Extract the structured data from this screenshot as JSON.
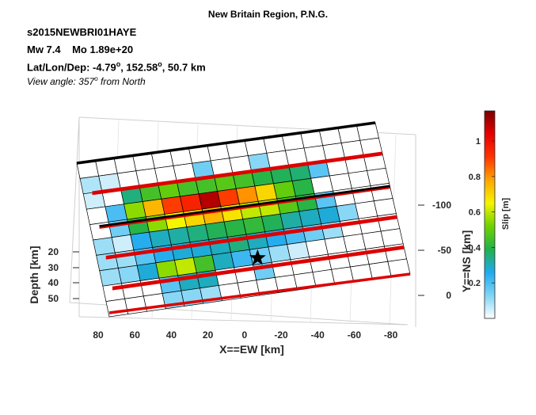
{
  "header": {
    "title": "New Britain Region, P.N.G.",
    "event_id": "s2015NEWBRI01HAYE",
    "magnitude": "Mw 7.4",
    "moment": "Mo 1.89e+20",
    "location_prefix": "Lat/Lon/Dep: -4.79",
    "location_lat": "-4.79",
    "location_lon": "152.58",
    "location_dep": "50.7 km",
    "view_prefix": "View angle: 357",
    "view_suffix": "from North",
    "degree_symbol": "o"
  },
  "chart_data": {
    "type": "heatmap",
    "title": "New Britain Region, P.N.G.",
    "xlabel": "X==EW [km]",
    "ylabel": "Y==NS [km]",
    "zlabel": "Depth [km]",
    "colorbar_label": "Slip [m]",
    "x_ticks": [
      "80",
      "60",
      "40",
      "20",
      "0",
      "-20",
      "-40",
      "-60",
      "-80"
    ],
    "y_ticks": [
      "-100",
      "-50",
      "0"
    ],
    "z_ticks": [
      "20",
      "30",
      "40",
      "50"
    ],
    "colorbar_ticks": [
      "0.2",
      "0.4",
      "0.6",
      "0.8",
      "1"
    ],
    "colorbar_range": [
      0,
      1.17
    ],
    "hypocenter": "star",
    "grid_rows": 10,
    "grid_cols": 16,
    "slip": [
      [
        0,
        0,
        0,
        0,
        0,
        0,
        0,
        0,
        0,
        0,
        0,
        0,
        0,
        0,
        0,
        0
      ],
      [
        0.08,
        0.05,
        0,
        0,
        0,
        0,
        0.15,
        0,
        0,
        0.12,
        0,
        0,
        0,
        0,
        0,
        0
      ],
      [
        0.05,
        0,
        0.35,
        0.45,
        0.5,
        0.45,
        0.45,
        0.48,
        0.45,
        0.4,
        0.38,
        0.36,
        0.18,
        0,
        0,
        0
      ],
      [
        0,
        0.2,
        0.55,
        0.75,
        0.9,
        0.95,
        1.1,
        0.9,
        0.8,
        0.7,
        0.5,
        0.4,
        0,
        0,
        0,
        0
      ],
      [
        0,
        0.15,
        0.4,
        0.55,
        0.65,
        0.7,
        0.75,
        0.68,
        0.6,
        0.6,
        0.48,
        0.4,
        0.18,
        0,
        0,
        0
      ],
      [
        0.1,
        0.05,
        0.25,
        0.3,
        0.32,
        0.35,
        0.38,
        0.4,
        0.42,
        0.38,
        0.32,
        0.3,
        0.28,
        0.12,
        0,
        0
      ],
      [
        0.1,
        0.1,
        0.18,
        0.25,
        0.28,
        0.28,
        0.3,
        0.35,
        0.3,
        0.25,
        0.2,
        0.15,
        0.1,
        0,
        0,
        0
      ],
      [
        0.1,
        0.12,
        0.28,
        0.55,
        0.6,
        0.45,
        0.3,
        0.22,
        0.15,
        0.1,
        0.05,
        0,
        0,
        0,
        0,
        0
      ],
      [
        0,
        0,
        0,
        0.18,
        0.3,
        0.3,
        0,
        0,
        0.15,
        0,
        0,
        0,
        0,
        0,
        0,
        0
      ],
      [
        0,
        0,
        0,
        0.12,
        0.12,
        0.1,
        0,
        0,
        0,
        0,
        0,
        0,
        0,
        0,
        0,
        0
      ]
    ]
  },
  "colors": {
    "colormap": [
      "#ffffff",
      "#7fd4f5",
      "#1eaaf0",
      "#22b14c",
      "#6ed200",
      "#f5f500",
      "#ffa500",
      "#ff3300",
      "#e60000",
      "#7a0000"
    ],
    "black_line": "#000000",
    "red_line": "#dd0000"
  }
}
